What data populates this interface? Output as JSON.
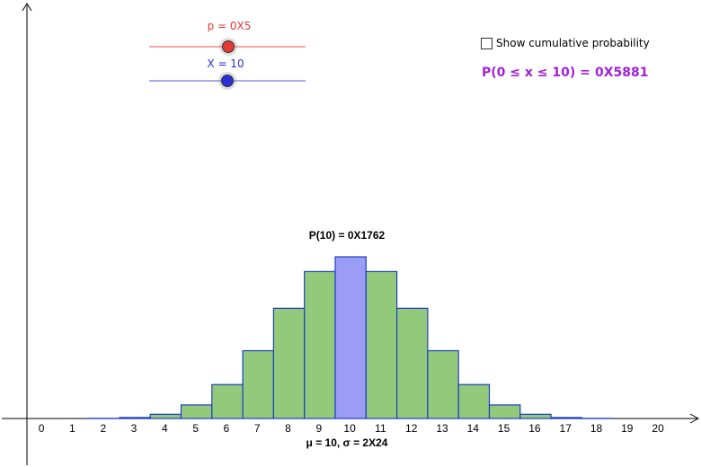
{
  "controls": {
    "p_slider": {
      "label": "p = 0X5",
      "value": 0.5,
      "color": "#e53935"
    },
    "x_slider": {
      "label": "X = 10",
      "value": 10,
      "min": 0,
      "max": 20,
      "color": "#2b2fd8"
    },
    "cumulative_checkbox": {
      "label": "Show cumulative probability",
      "checked": false
    },
    "cumulative_text": "P(0 ≤ x ≤ 10) =",
    "cumulative_value": "0X5881",
    "cumulative_color": "#a321d6"
  },
  "chart_data": {
    "type": "bar",
    "categories": [
      "0",
      "1",
      "2",
      "3",
      "4",
      "5",
      "6",
      "7",
      "8",
      "9",
      "10",
      "11",
      "12",
      "13",
      "14",
      "15",
      "16",
      "17",
      "18",
      "19",
      "20"
    ],
    "values": [
      1e-06,
      1.9e-05,
      0.000181,
      0.001087,
      0.004621,
      0.014786,
      0.036964,
      0.073929,
      0.120134,
      0.160179,
      0.176197,
      0.160179,
      0.120134,
      0.073929,
      0.036964,
      0.014786,
      0.004621,
      0.001087,
      0.000181,
      1.9e-05,
      1e-06
    ],
    "highlight_index": 10,
    "highlight_label": "P(10) = 0X1762",
    "xlabel": "μ = 10, σ = 2X24",
    "ylim": [
      0,
      0.176197
    ],
    "colors": {
      "bar": "#93c97a",
      "highlight": "#9b9cf5",
      "bar_stroke": "#1a3fc2",
      "axis": "#000000"
    }
  }
}
